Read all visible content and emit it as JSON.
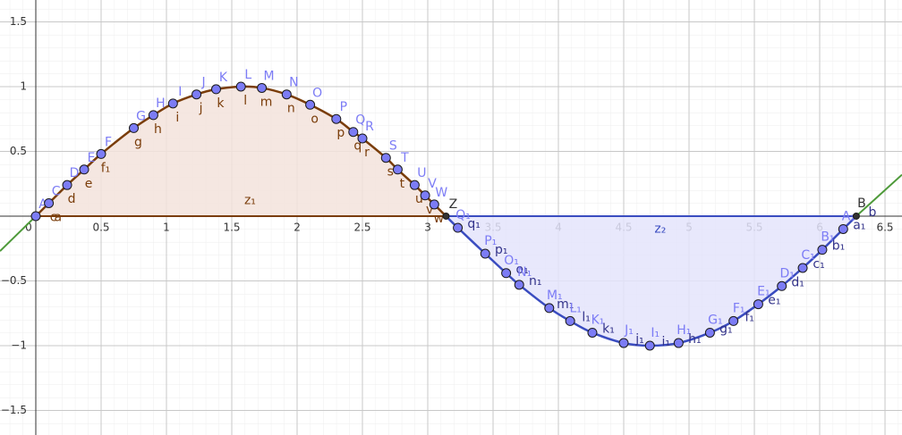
{
  "chart_data": {
    "type": "function-plot",
    "xlim": [
      -0.274,
      6.63
    ],
    "ylim": [
      -1.69,
      1.669
    ],
    "xticks": [
      0,
      0.5,
      1,
      1.5,
      2,
      2.5,
      3,
      3.5,
      4,
      4.5,
      5,
      5.5,
      6,
      6.5
    ],
    "yticks": [
      {
        "value": -1.5,
        "label": "−1.5"
      },
      {
        "value": -1,
        "label": "−1"
      },
      {
        "value": -0.5,
        "label": "−0.5"
      },
      0.5,
      1,
      1.5
    ],
    "grid": true,
    "series": [
      {
        "color": "#7a3d0a",
        "fill": "#f3e3dc",
        "points": [
          {
            "x": 0,
            "y": 0,
            "label": "A"
          },
          {
            "x": 0.1,
            "y": 0.1,
            "label": "C",
            "label2": "c"
          },
          {
            "x": 0.24,
            "y": 0.24,
            "label": "D",
            "label2": "d"
          },
          {
            "x": 0.37,
            "y": 0.36,
            "label": "E",
            "label2": "e"
          },
          {
            "x": 0.5,
            "y": 0.48,
            "label": "F",
            "label2": "f₁"
          },
          {
            "x": 0.75,
            "y": 0.68,
            "label": "G",
            "label2": "g"
          },
          {
            "x": 0.9,
            "y": 0.78,
            "label": "H",
            "label2": "h"
          },
          {
            "x": 1.05,
            "y": 0.87,
            "label": "I",
            "label2": "i"
          },
          {
            "x": 1.23,
            "y": 0.94,
            "label": "J",
            "label2": "j"
          },
          {
            "x": 1.38,
            "y": 0.98,
            "label": "K",
            "label2": "k"
          },
          {
            "x": 1.57,
            "y": 1,
            "label": "L",
            "label2": "l"
          },
          {
            "x": 1.73,
            "y": 0.99,
            "label": "M",
            "label2": "m"
          },
          {
            "x": 1.92,
            "y": 0.94,
            "label": "N",
            "label2": "n"
          },
          {
            "x": 2.1,
            "y": 0.86,
            "label": "O",
            "label2": "o"
          },
          {
            "x": 2.3,
            "y": 0.75,
            "label": "P",
            "label2": "p"
          },
          {
            "x": 2.43,
            "y": 0.65,
            "label": "Q",
            "label2": "q"
          },
          {
            "x": 2.5,
            "y": 0.6,
            "label": "R",
            "label2": "r"
          },
          {
            "x": 2.68,
            "y": 0.45,
            "label": "S",
            "label2": "s"
          },
          {
            "x": 2.77,
            "y": 0.36,
            "label": "T",
            "label2": "t"
          },
          {
            "x": 2.9,
            "y": 0.24,
            "label": "U",
            "label2": "u"
          },
          {
            "x": 2.98,
            "y": 0.16,
            "label": "V",
            "label2": "v"
          },
          {
            "x": 3.05,
            "y": 0.09,
            "label": "W",
            "label2": "w"
          },
          {
            "x": 3.14,
            "y": 0,
            "label": "Z",
            "dark": true
          }
        ]
      },
      {
        "color": "#3a4cc0",
        "fill": "#e4e4fb",
        "points": [
          {
            "x": 3.14,
            "y": 0
          },
          {
            "x": 3.23,
            "y": -0.09,
            "label": "Q₁",
            "label2": "q₁"
          },
          {
            "x": 3.44,
            "y": -0.29,
            "label": "P₁",
            "label2": "p₁"
          },
          {
            "x": 3.6,
            "y": -0.44,
            "label": "O₁",
            "label2": "o₁"
          },
          {
            "x": 3.7,
            "y": -0.53,
            "label": "N₁",
            "label2": "n₁"
          },
          {
            "x": 3.93,
            "y": -0.71,
            "label": "M₁",
            "label2": "m₁"
          },
          {
            "x": 4.09,
            "y": -0.81,
            "label": "L₁",
            "label2": "l₁"
          },
          {
            "x": 4.26,
            "y": -0.9,
            "label": "K₁",
            "label2": "k₁"
          },
          {
            "x": 4.5,
            "y": -0.98,
            "label": "J₁",
            "label2": "j₁"
          },
          {
            "x": 4.7,
            "y": -1,
            "label": "I₁",
            "label2": "i₁"
          },
          {
            "x": 4.92,
            "y": -0.98,
            "label": "H₁",
            "label2": "h₁"
          },
          {
            "x": 5.16,
            "y": -0.9,
            "label": "G₁",
            "label2": "g₁"
          },
          {
            "x": 5.34,
            "y": -0.81,
            "label": "F₁",
            "label2": "f₁"
          },
          {
            "x": 5.53,
            "y": -0.68,
            "label": "E₁",
            "label2": "e₁"
          },
          {
            "x": 5.71,
            "y": -0.54,
            "label": "D₁",
            "label2": "d₁"
          },
          {
            "x": 5.87,
            "y": -0.4,
            "label": "C₁",
            "label2": "c₁"
          },
          {
            "x": 6.02,
            "y": -0.26,
            "label": "B₁",
            "label2": "b₁"
          },
          {
            "x": 6.18,
            "y": -0.1,
            "label": "A₁",
            "label2": "a₁"
          },
          {
            "x": 6.28,
            "y": 0,
            "label": "B",
            "label2": "b",
            "dark": true
          }
        ]
      }
    ],
    "outer": {
      "color": "#4e9a3a",
      "pieces": [
        {
          "x": [
            -0.274,
            0
          ],
          "y": [
            -0.27,
            0
          ]
        },
        {
          "x": [
            6.28,
            6.63
          ],
          "y": [
            0,
            0.32
          ]
        }
      ]
    },
    "region_labels": [
      {
        "x": 1.64,
        "y": 0.12,
        "label": "z₁"
      },
      {
        "x": 4.78,
        "y": -0.1,
        "label": "z₂"
      },
      {
        "x": 0.17,
        "y": -0.01,
        "label": "a"
      }
    ]
  }
}
